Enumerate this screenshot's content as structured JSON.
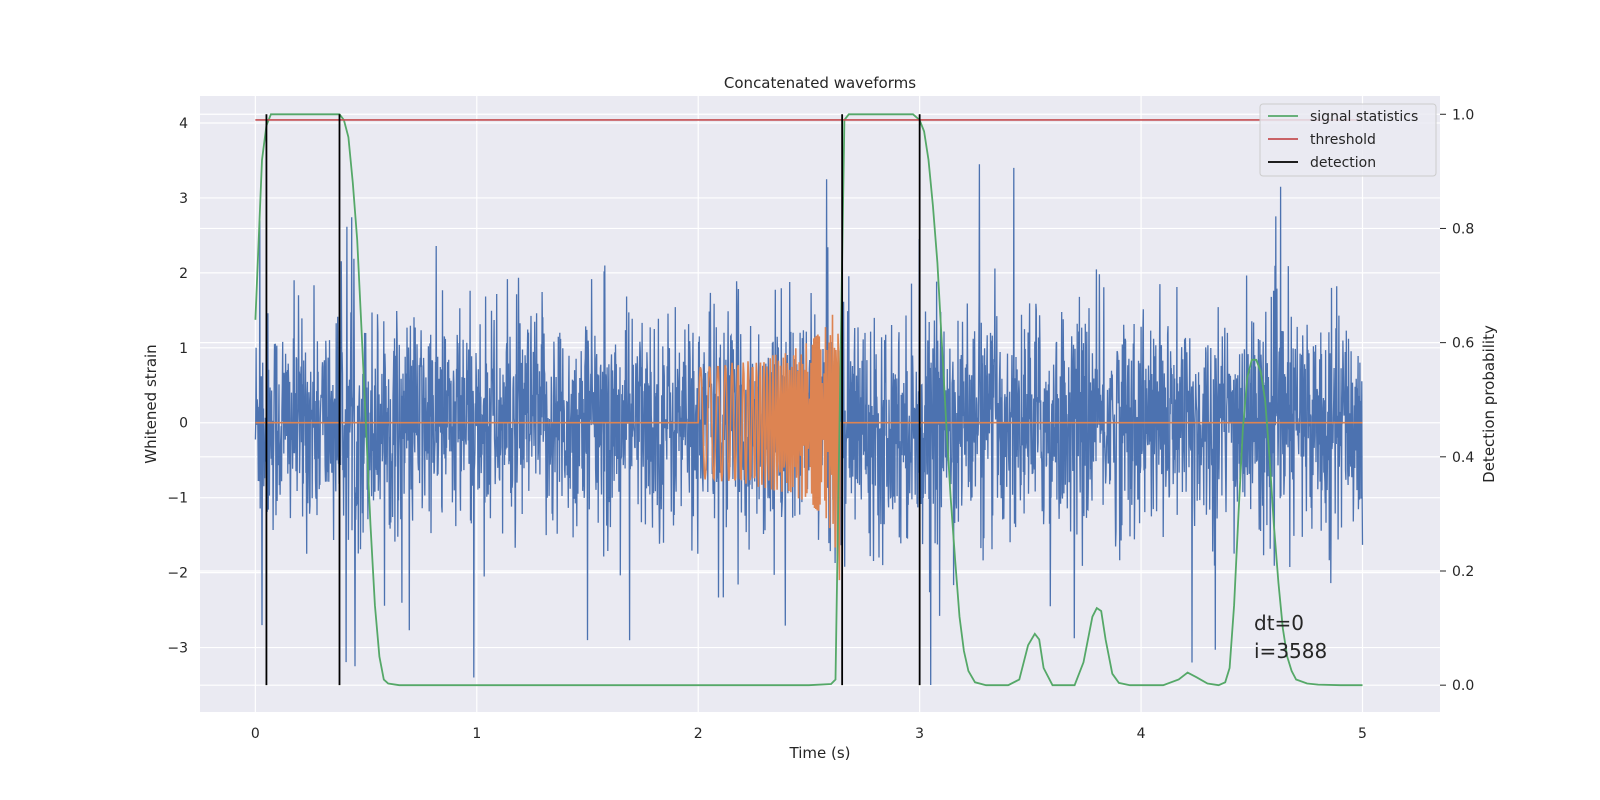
{
  "chart_data": {
    "type": "line",
    "title": "Concatenated waveforms",
    "xlabel": "Time (s)",
    "ylabel": "Whitened strain",
    "y2label": "Detection probability",
    "xlim": [
      -0.25,
      5.35
    ],
    "ylim": [
      -3.86,
      4.36
    ],
    "y2lim": [
      -0.047,
      1.032
    ],
    "x_ticks": [
      0,
      1,
      2,
      3,
      4,
      5
    ],
    "y_ticks": [
      -3,
      -2,
      -1,
      0,
      1,
      2,
      3,
      4
    ],
    "y2_ticks": [
      0.0,
      0.2,
      0.4,
      0.6,
      0.8,
      1.0
    ],
    "x_tick_labels": [
      "0",
      "1",
      "2",
      "3",
      "4",
      "5"
    ],
    "y_tick_labels": [
      "−3",
      "−2",
      "−1",
      "0",
      "1",
      "2",
      "3",
      "4"
    ],
    "y2_tick_labels": [
      "0.0",
      "0.2",
      "0.4",
      "0.6",
      "0.8",
      "1.0"
    ],
    "grid": true,
    "legend": {
      "placement": "top-right",
      "entries": [
        {
          "label": "signal statistics",
          "color": "#55a868"
        },
        {
          "label": "threshold",
          "color": "#c44e52"
        },
        {
          "label": "detection",
          "color": "#000000"
        }
      ]
    },
    "series": [
      {
        "role": "strain",
        "color": "#4c72b0",
        "axis": "left",
        "x_range": [
          0,
          5
        ],
        "typical_amplitude": 1.6,
        "notable_peaks": [
          {
            "x": 0.02,
            "y": 2.7
          },
          {
            "x": 0.03,
            "y": -2.7
          },
          {
            "x": 1.5,
            "y": 3.0
          },
          {
            "x": 1.5,
            "y": -2.9
          },
          {
            "x": 2.58,
            "y": 3.25
          },
          {
            "x": 3.27,
            "y": 3.45
          },
          {
            "x": 3.05,
            "y": -3.5
          },
          {
            "x": 4.63,
            "y": 3.15
          },
          {
            "x": 4.23,
            "y": -3.2
          },
          {
            "x": 0.45,
            "y": -3.25
          }
        ]
      },
      {
        "role": "injected chirp",
        "color": "#dd8452",
        "axis": "left",
        "baseline": 0,
        "chirp_start": 2.0,
        "chirp_end": 2.64,
        "peak_amplitude": 2.1
      },
      {
        "name": "signal statistics",
        "color": "#55a868",
        "axis": "right",
        "x": [
          0.0,
          0.015,
          0.03,
          0.05,
          0.07,
          0.1,
          0.15,
          0.2,
          0.25,
          0.3,
          0.35,
          0.38,
          0.4,
          0.42,
          0.44,
          0.46,
          0.48,
          0.5,
          0.52,
          0.54,
          0.56,
          0.58,
          0.6,
          0.65,
          0.7,
          0.8,
          1.0,
          1.5,
          2.0,
          2.5,
          2.6,
          2.62,
          2.64,
          2.66,
          2.68,
          2.7,
          2.8,
          2.9,
          2.97,
          3.0,
          3.02,
          3.04,
          3.06,
          3.08,
          3.1,
          3.12,
          3.14,
          3.16,
          3.18,
          3.2,
          3.22,
          3.25,
          3.3,
          3.4,
          3.45,
          3.49,
          3.52,
          3.54,
          3.56,
          3.6,
          3.7,
          3.74,
          3.78,
          3.8,
          3.82,
          3.84,
          3.87,
          3.9,
          3.95,
          4.0,
          4.1,
          4.17,
          4.21,
          4.25,
          4.3,
          4.35,
          4.38,
          4.4,
          4.42,
          4.44,
          4.46,
          4.48,
          4.5,
          4.52,
          4.54,
          4.56,
          4.58,
          4.6,
          4.62,
          4.64,
          4.66,
          4.68,
          4.7,
          4.75,
          4.8,
          4.9,
          5.0
        ],
        "values": [
          0.64,
          0.78,
          0.92,
          0.98,
          1.0,
          1.0,
          1.0,
          1.0,
          1.0,
          1.0,
          1.0,
          1.0,
          0.99,
          0.96,
          0.88,
          0.78,
          0.62,
          0.45,
          0.28,
          0.14,
          0.05,
          0.01,
          0.003,
          0.0,
          0.0,
          0.0,
          0.0,
          0.0,
          0.0,
          0.0,
          0.002,
          0.01,
          0.5,
          0.99,
          1.0,
          1.0,
          1.0,
          1.0,
          1.0,
          0.99,
          0.97,
          0.92,
          0.84,
          0.74,
          0.6,
          0.46,
          0.33,
          0.22,
          0.12,
          0.06,
          0.025,
          0.005,
          0.0,
          0.0,
          0.01,
          0.07,
          0.09,
          0.08,
          0.03,
          0.0,
          0.0,
          0.04,
          0.12,
          0.135,
          0.13,
          0.08,
          0.02,
          0.004,
          0.0,
          0.0,
          0.0,
          0.01,
          0.022,
          0.014,
          0.003,
          0.0,
          0.005,
          0.03,
          0.14,
          0.3,
          0.45,
          0.54,
          0.57,
          0.57,
          0.55,
          0.5,
          0.4,
          0.28,
          0.18,
          0.1,
          0.05,
          0.025,
          0.01,
          0.003,
          0.001,
          0.0,
          0.0
        ]
      },
      {
        "name": "threshold",
        "color": "#c44e52",
        "axis": "right",
        "x": [
          0,
          5
        ],
        "values": [
          0.99,
          0.99
        ]
      },
      {
        "name": "detection",
        "color": "#000000",
        "axis": "right",
        "vertical_lines_at": [
          0.05,
          0.38,
          2.65,
          3.0
        ],
        "from": 0.0,
        "to": 1.0
      }
    ],
    "annotations": [
      "dt=0",
      "i=3588"
    ]
  }
}
